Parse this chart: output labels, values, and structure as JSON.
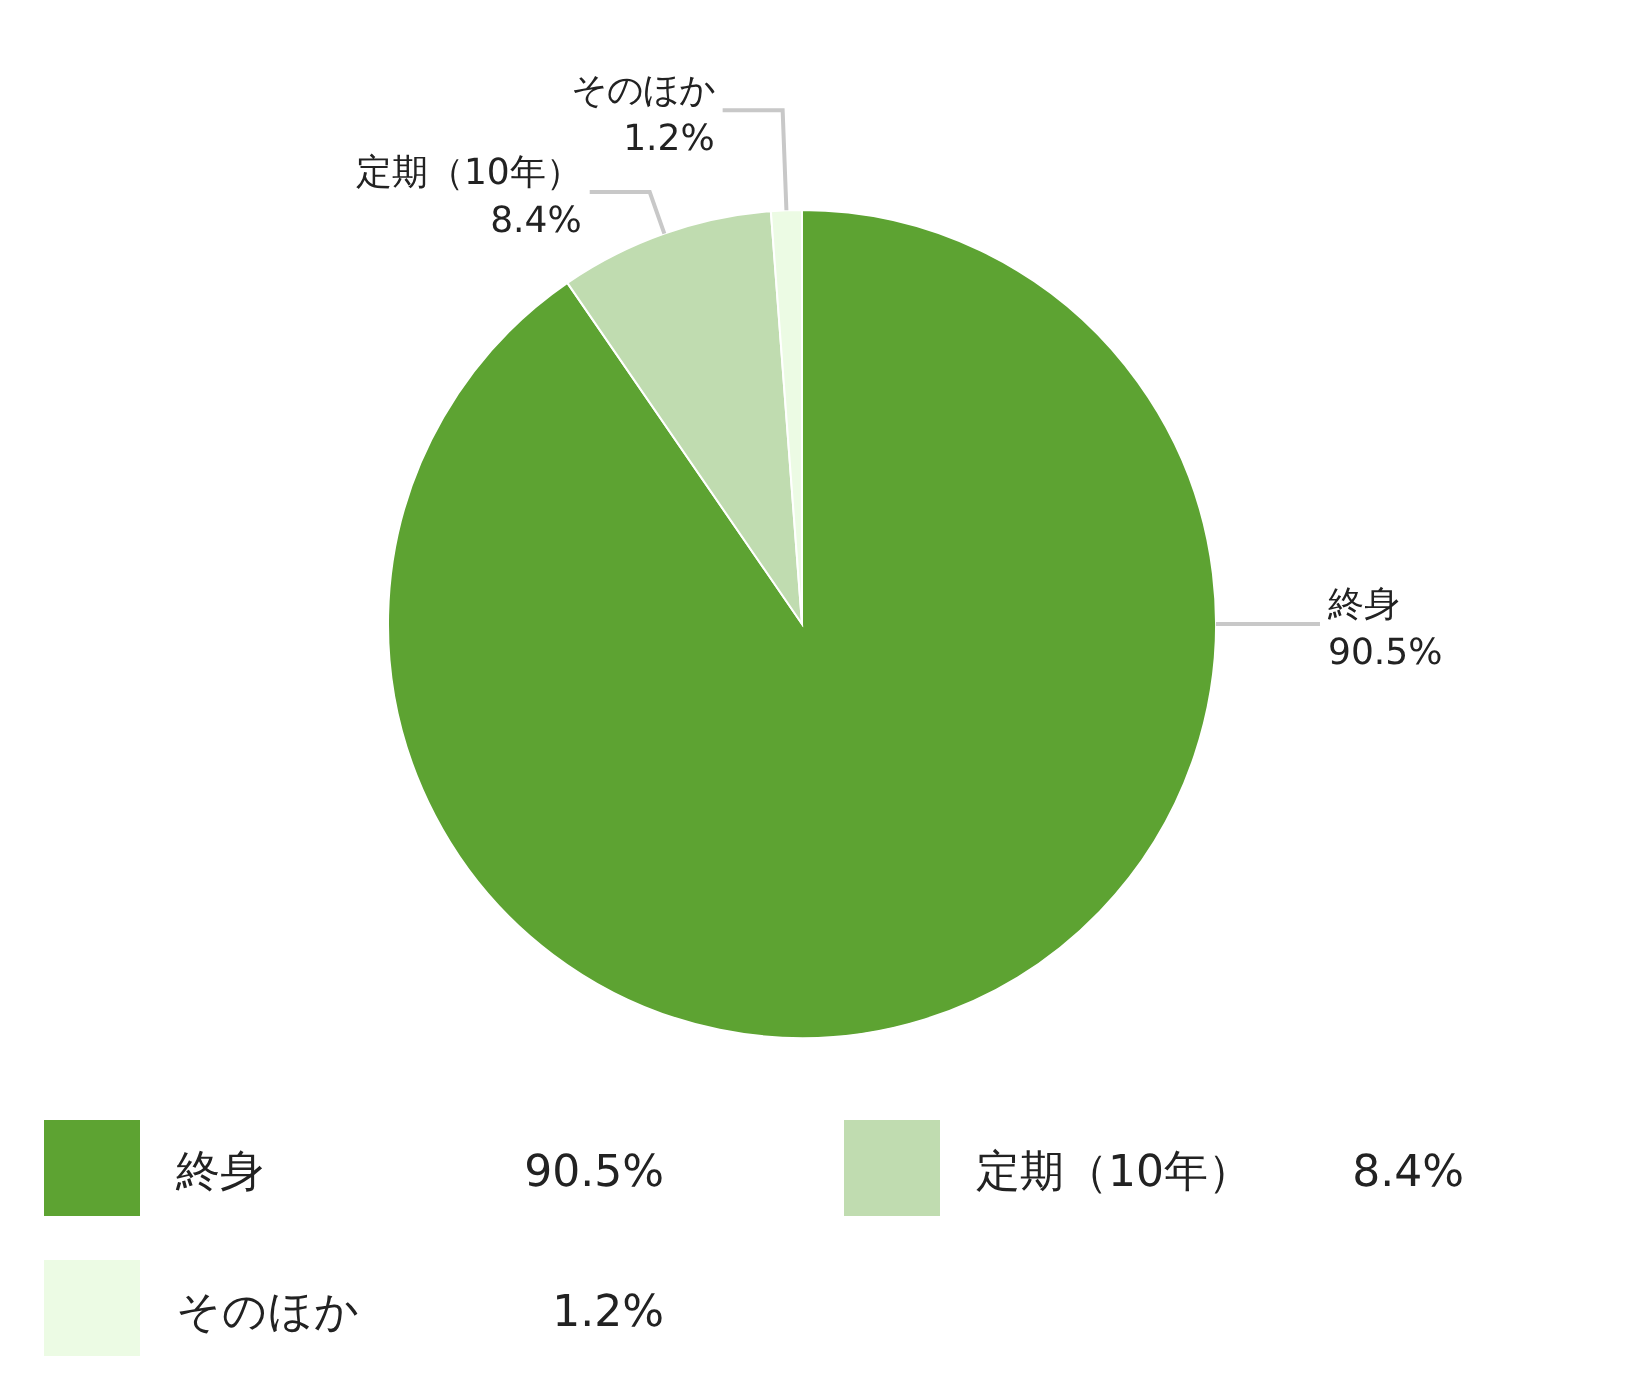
{
  "chart_data": {
    "type": "pie",
    "categories": [
      "終身",
      "定期（10年）",
      "そのほか"
    ],
    "values": [
      90.5,
      8.4,
      1.2
    ],
    "colors": [
      "#5da332",
      "#c0dcb0",
      "#ecfbe4"
    ],
    "value_labels": [
      "90.5%",
      "8.4%",
      "1.2%"
    ],
    "legend": "bottom"
  }
}
